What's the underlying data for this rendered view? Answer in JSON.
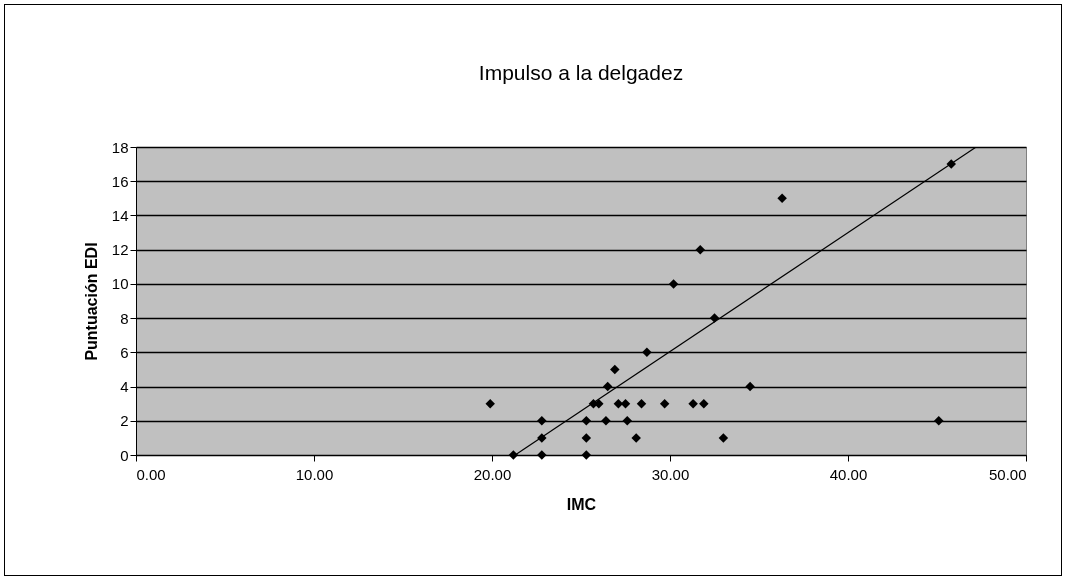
{
  "chart_data": {
    "type": "scatter",
    "title": "Impulso a la delgadez",
    "xlabel": "IMC",
    "ylabel": "Puntuación EDI",
    "xlim": [
      0,
      50
    ],
    "xticks": [
      {
        "value": 0,
        "label": "0.00"
      },
      {
        "value": 10,
        "label": "10.00"
      },
      {
        "value": 20,
        "label": "20.00"
      },
      {
        "value": 30,
        "label": "30.00"
      },
      {
        "value": 40,
        "label": "40.00"
      },
      {
        "value": 50,
        "label": "50.00"
      }
    ],
    "ylim": [
      0,
      18
    ],
    "yticks": [
      0,
      2,
      4,
      6,
      8,
      10,
      12,
      14,
      16,
      18
    ],
    "grid": "y",
    "marker": "diamond",
    "series": [
      {
        "color": "#000000",
        "x": [
          19.9,
          21.2,
          22.8,
          22.8,
          22.8,
          25.3,
          25.3,
          25.3,
          25.7,
          26.0,
          26.4,
          26.5,
          26.9,
          27.1,
          27.5,
          27.6,
          28.1,
          28.4,
          28.7,
          29.7,
          30.2,
          31.3,
          31.7,
          31.9,
          32.5,
          33.0,
          34.5,
          36.3,
          45.1,
          45.8
        ],
        "values": [
          3,
          0,
          2,
          1,
          0,
          2,
          1,
          0,
          3,
          3,
          2,
          4,
          5,
          3,
          3,
          2,
          1,
          3,
          6,
          3,
          10,
          3,
          12,
          3,
          8,
          1,
          4,
          15,
          2,
          17
        ]
      },
      {
        "type": "line",
        "marker": "none",
        "color": "#000000",
        "x": [
          21.3,
          47.2
        ],
        "values": [
          0,
          18
        ]
      }
    ]
  }
}
